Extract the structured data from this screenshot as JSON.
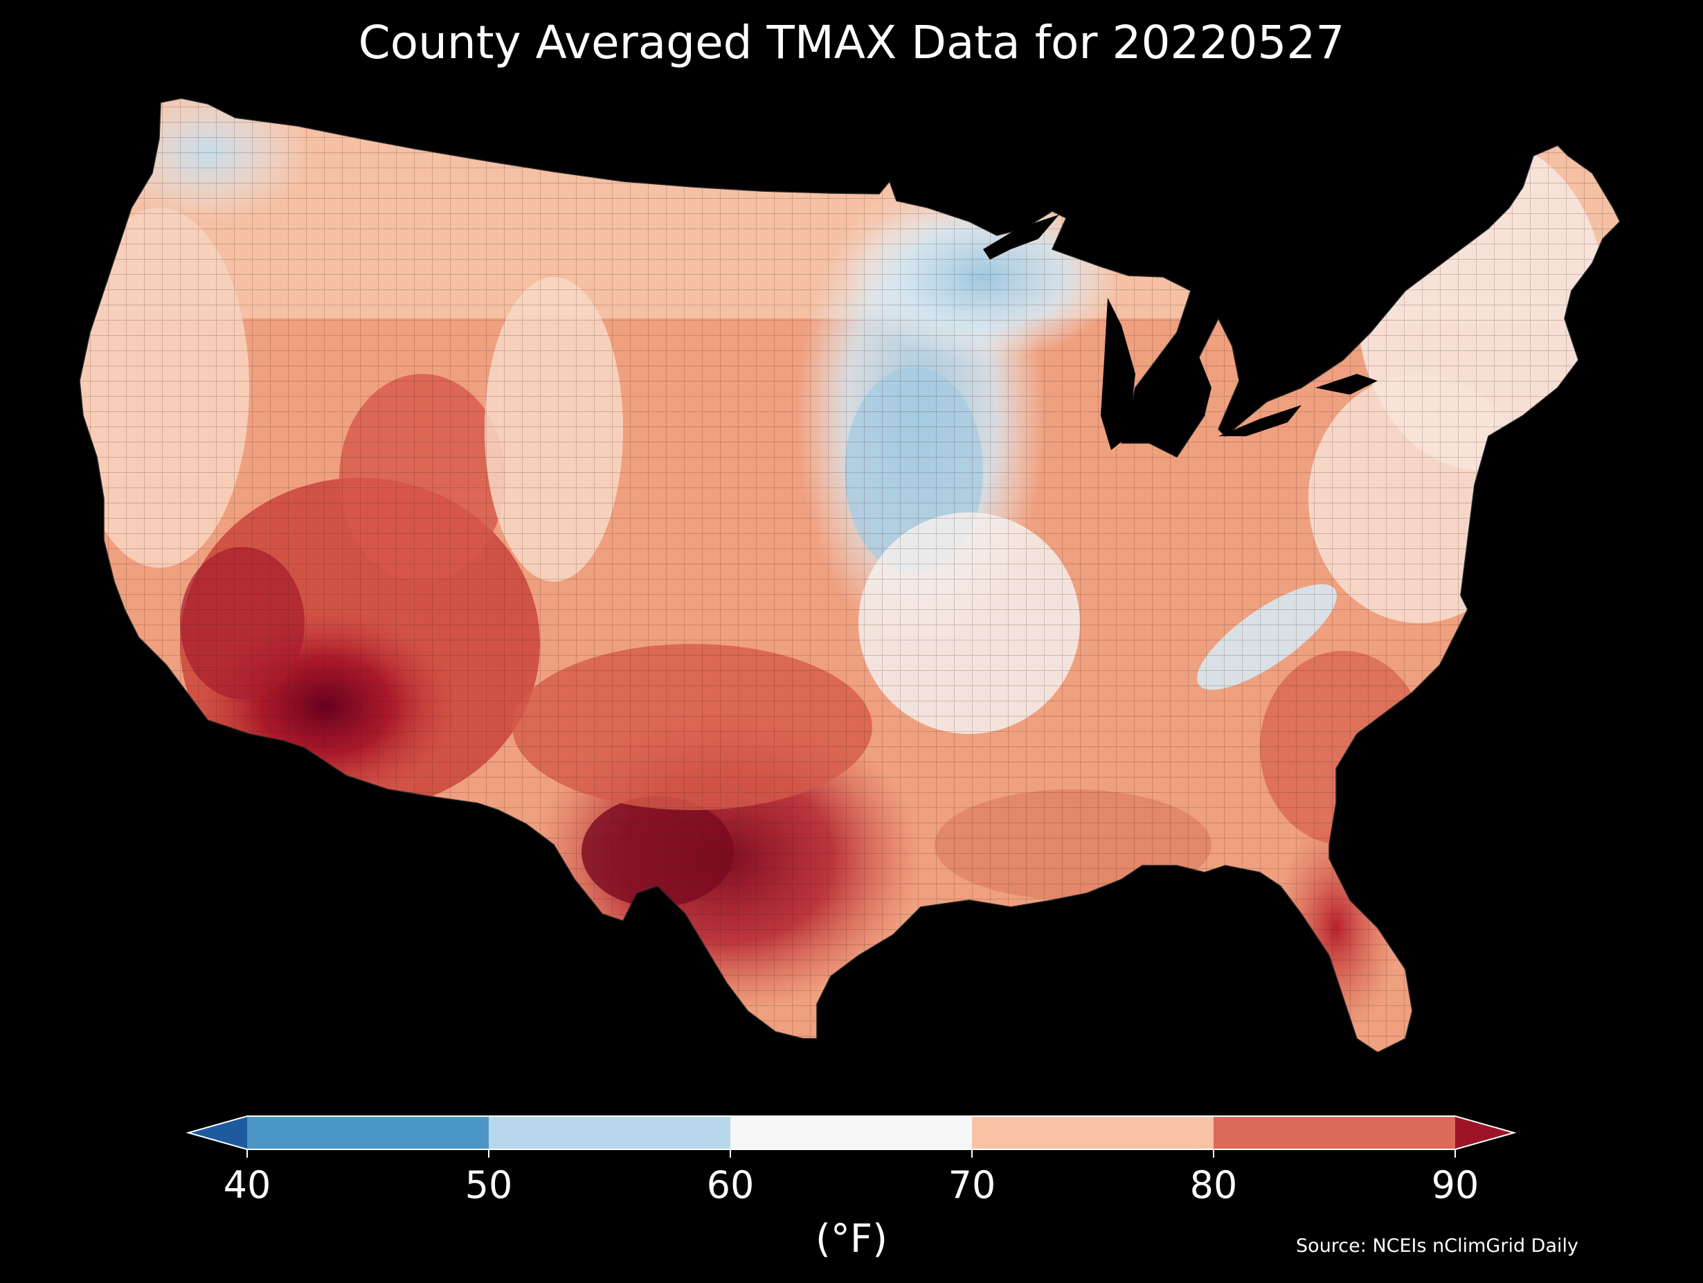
{
  "title": "County Averaged TMAX Data for 20220527",
  "colorbar": {
    "unit_label": "(°F)",
    "ticks": [
      "40",
      "50",
      "60",
      "70",
      "80",
      "90"
    ],
    "bins": [
      {
        "from": 40,
        "to": 50,
        "color": "#4a96c6"
      },
      {
        "from": 50,
        "to": 60,
        "color": "#b7d7ea"
      },
      {
        "from": 60,
        "to": 70,
        "color": "#f6f6f6"
      },
      {
        "from": 70,
        "to": 80,
        "color": "#f8c3a5"
      },
      {
        "from": 80,
        "to": 90,
        "color": "#dc6a58"
      }
    ],
    "under_color": "#1e5b9e",
    "over_color": "#9b1527",
    "extend": "both"
  },
  "source": "Source: NCEIs nClimGrid Daily",
  "map": {
    "region": "Contiguous United States",
    "units": "county",
    "variable": "TMAX",
    "date": "20220527",
    "coolest_areas": [
      "Upper Midwest",
      "Northern Great Lakes",
      "Pacific Northwest coast",
      "Southern Appalachians"
    ],
    "hottest_areas": [
      "Lower Colorado River Valley",
      "Southern Arizona",
      "South Texas",
      "Central Florida"
    ]
  }
}
